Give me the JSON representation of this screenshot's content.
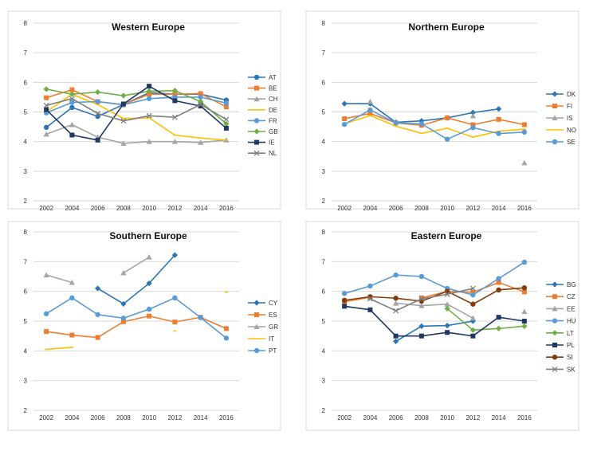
{
  "chart_data": [
    {
      "type": "line",
      "title": "Western Europe",
      "x": [
        "2002",
        "2004",
        "2006",
        "2008",
        "2010",
        "2012",
        "2014",
        "2016"
      ],
      "ylim": [
        2,
        8
      ],
      "yticks": [
        "2",
        "3",
        "4",
        "5",
        "6",
        "7",
        "8"
      ],
      "grid": true,
      "legend": "right",
      "series": [
        {
          "name": "AT",
          "color": "#2e75b6",
          "marker": "circle",
          "values": [
            4.48,
            5.15,
            4.85,
            5.25,
            5.65,
            5.6,
            5.6,
            5.4
          ]
        },
        {
          "name": "BE",
          "color": "#ed7d31",
          "marker": "square",
          "values": [
            5.48,
            5.75,
            5.35,
            5.25,
            5.6,
            5.6,
            5.62,
            5.17
          ]
        },
        {
          "name": "CH",
          "color": "#a5a5a5",
          "marker": "triangle",
          "values": [
            4.25,
            4.57,
            4.15,
            3.94,
            4.0,
            4.0,
            3.97,
            4.05
          ]
        },
        {
          "name": "DE",
          "color": "#ffc000",
          "marker": "none",
          "values": [
            5.0,
            5.6,
            5.25,
            4.78,
            4.8,
            4.22,
            4.12,
            4.05
          ]
        },
        {
          "name": "FR",
          "color": "#5b9bd5",
          "marker": "circle",
          "values": [
            4.97,
            5.32,
            5.35,
            5.24,
            5.45,
            5.5,
            5.5,
            5.3
          ]
        },
        {
          "name": "GB",
          "color": "#70ad47",
          "marker": "diamond",
          "values": [
            5.77,
            5.6,
            5.67,
            5.55,
            5.7,
            5.72,
            5.35,
            4.6
          ]
        },
        {
          "name": "IE",
          "color": "#203864",
          "marker": "square",
          "values": [
            5.08,
            4.22,
            4.05,
            5.27,
            5.87,
            5.38,
            5.2,
            4.45
          ]
        },
        {
          "name": "NL",
          "color": "#7f7f7f",
          "marker": "cross",
          "values": [
            5.22,
            5.45,
            4.95,
            4.7,
            4.87,
            4.82,
            5.25,
            4.75
          ]
        }
      ]
    },
    {
      "type": "line",
      "title": "Northern Europe",
      "x": [
        "2002",
        "2004",
        "2006",
        "2008",
        "2010",
        "2012",
        "2014",
        "2016"
      ],
      "ylim": [
        2,
        8
      ],
      "yticks": [
        "2",
        "3",
        "4",
        "5",
        "6",
        "7",
        "8"
      ],
      "grid": true,
      "legend": "right",
      "series": [
        {
          "name": "DK",
          "color": "#2e75b6",
          "marker": "diamond",
          "values": [
            5.28,
            5.28,
            4.65,
            4.7,
            4.8,
            4.98,
            5.1,
            null
          ]
        },
        {
          "name": "FI",
          "color": "#ed7d31",
          "marker": "square",
          "values": [
            4.77,
            4.95,
            4.63,
            4.55,
            4.8,
            4.57,
            4.75,
            4.57
          ]
        },
        {
          "name": "IS",
          "color": "#a5a5a5",
          "marker": "triangle",
          "values": [
            null,
            5.35,
            null,
            null,
            null,
            4.87,
            null,
            3.28
          ]
        },
        {
          "name": "NO",
          "color": "#ffc000",
          "marker": "none",
          "values": [
            4.6,
            4.88,
            4.52,
            4.28,
            4.45,
            4.15,
            4.35,
            4.42
          ]
        },
        {
          "name": "SE",
          "color": "#5b9bd5",
          "marker": "circle",
          "values": [
            4.58,
            5.07,
            4.63,
            4.6,
            4.08,
            4.47,
            4.27,
            4.32
          ]
        }
      ]
    },
    {
      "type": "line",
      "title": "Southern Europe",
      "x": [
        "2002",
        "2004",
        "2006",
        "2008",
        "2010",
        "2012",
        "2014",
        "2016"
      ],
      "ylim": [
        2,
        8
      ],
      "yticks": [
        "2",
        "3",
        "4",
        "5",
        "6",
        "7",
        "8"
      ],
      "grid": true,
      "legend": "right",
      "series": [
        {
          "name": "CY",
          "color": "#2e75b6",
          "marker": "diamond",
          "values": [
            null,
            null,
            6.1,
            5.58,
            6.27,
            7.22,
            null,
            null
          ]
        },
        {
          "name": "ES",
          "color": "#ed7d31",
          "marker": "square",
          "values": [
            4.65,
            4.53,
            4.45,
            4.98,
            5.17,
            4.97,
            5.13,
            4.75
          ]
        },
        {
          "name": "GR",
          "color": "#a5a5a5",
          "marker": "triangle",
          "values": [
            6.55,
            6.3,
            null,
            6.62,
            7.15,
            null,
            null,
            null
          ]
        },
        {
          "name": "IT",
          "color": "#ffc000",
          "marker": "none",
          "values": [
            4.05,
            4.12,
            null,
            null,
            null,
            4.67,
            null,
            5.97
          ]
        },
        {
          "name": "PT",
          "color": "#5b9bd5",
          "marker": "circle",
          "values": [
            5.25,
            5.78,
            5.22,
            5.1,
            5.4,
            5.78,
            5.12,
            4.43
          ]
        }
      ]
    },
    {
      "type": "line",
      "title": "Eastern Europe",
      "x": [
        "2002",
        "2004",
        "2006",
        "2008",
        "2010",
        "2012",
        "2014",
        "2016"
      ],
      "ylim": [
        2,
        8
      ],
      "yticks": [
        "2",
        "3",
        "4",
        "5",
        "6",
        "7",
        "8"
      ],
      "grid": true,
      "legend": "right",
      "series": [
        {
          "name": "BG",
          "color": "#2e75b6",
          "marker": "diamond",
          "values": [
            null,
            null,
            4.32,
            4.83,
            4.85,
            5.0,
            null,
            null
          ]
        },
        {
          "name": "CZ",
          "color": "#ed7d31",
          "marker": "square",
          "values": [
            5.65,
            5.8,
            null,
            5.78,
            6.0,
            5.97,
            6.3,
            5.98
          ]
        },
        {
          "name": "EE",
          "color": "#a5a5a5",
          "marker": "triangle",
          "values": [
            null,
            null,
            5.6,
            5.52,
            5.57,
            5.1,
            null,
            5.32
          ]
        },
        {
          "name": "HU",
          "color": "#5b9bd5",
          "marker": "circle",
          "values": [
            5.93,
            6.18,
            6.55,
            6.5,
            6.1,
            5.88,
            6.43,
            6.98
          ]
        },
        {
          "name": "LT",
          "color": "#70ad47",
          "marker": "diamond",
          "values": [
            null,
            null,
            null,
            null,
            5.42,
            4.7,
            4.75,
            4.83
          ]
        },
        {
          "name": "PL",
          "color": "#203864",
          "marker": "square",
          "values": [
            5.5,
            5.38,
            4.5,
            4.5,
            4.62,
            4.5,
            5.13,
            5.0
          ]
        },
        {
          "name": "SI",
          "color": "#843c0c",
          "marker": "circle",
          "values": [
            5.7,
            5.82,
            5.77,
            5.67,
            6.0,
            5.57,
            6.05,
            6.12
          ]
        },
        {
          "name": "SK",
          "color": "#7f7f7f",
          "marker": "cross",
          "values": [
            null,
            5.75,
            5.35,
            5.75,
            5.9,
            6.1,
            null,
            null
          ]
        }
      ]
    }
  ]
}
